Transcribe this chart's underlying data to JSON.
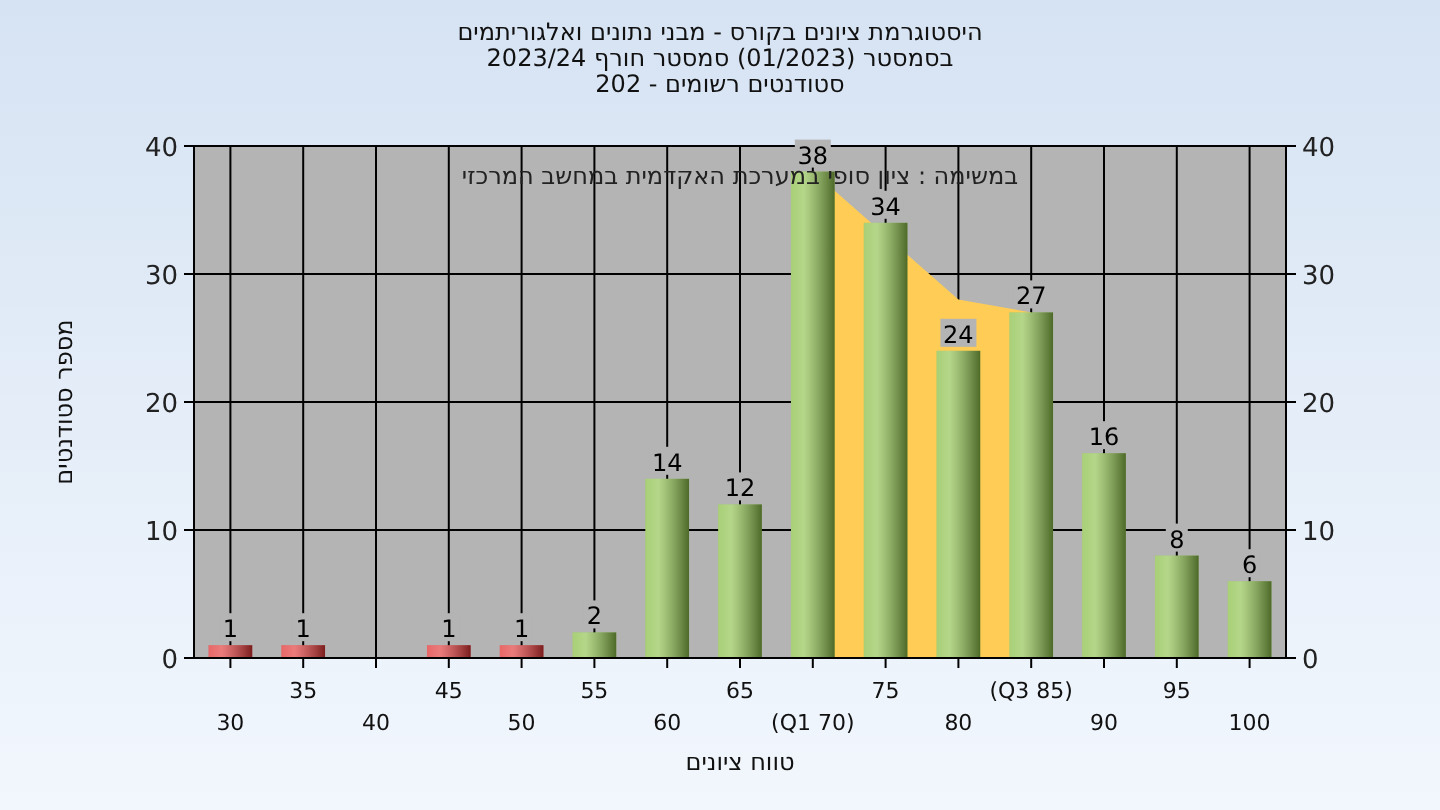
{
  "chart_data": {
    "type": "bar",
    "title": "היסטוגרמת ציונים בקורס - מבני נתונים ואלגוריתמים",
    "subtitle": "בסמסטר  (01/2023)  סמסטר חורף 2023/24\nסטודנטים רשומים - 202",
    "xlabel": "טווח ציונים",
    "ylabel": "מספר סטודנטים",
    "annotations": [
      "במשימה : ציון סופי במערכת האקדמית במחשב המרכזי"
    ],
    "categories": [
      "30",
      "35",
      "40",
      "45",
      "50",
      "55",
      "60",
      "65",
      "(Q1 70)",
      "75",
      "80",
      "(Q3 85)",
      "90",
      "95",
      "100"
    ],
    "series": [
      {
        "type": "area",
        "color": "#ffcc55",
        "values": [
          null,
          null,
          null,
          null,
          null,
          null,
          null,
          null,
          38,
          null,
          28,
          27,
          null,
          null,
          null
        ]
      },
      {
        "values": [
          1,
          1,
          0,
          1,
          1,
          2,
          14,
          12,
          38,
          34,
          24,
          27,
          16,
          8,
          6
        ],
        "value_labels": [
          "1",
          "1",
          null,
          "1",
          "1",
          "2",
          "14",
          "12",
          "38",
          "34",
          "24",
          "27",
          "16",
          "8",
          "6"
        ],
        "colors": [
          "#e03535",
          "#e03535",
          "#e03535",
          "#e03535",
          "#e03535",
          "#8cc04a",
          "#8cc04a",
          "#8cc04a",
          "#8cc04a",
          "#8cc04a",
          "#8cc04a",
          "#8cc04a",
          "#8cc04a",
          "#8cc04a",
          "#8cc04a"
        ]
      }
    ],
    "ylim": [
      0,
      40
    ],
    "yticks": [
      0,
      10,
      20,
      30,
      40
    ],
    "y2lim": [
      0,
      40
    ],
    "y2ticks": [
      0,
      10,
      20,
      30,
      40
    ],
    "grid": true
  }
}
